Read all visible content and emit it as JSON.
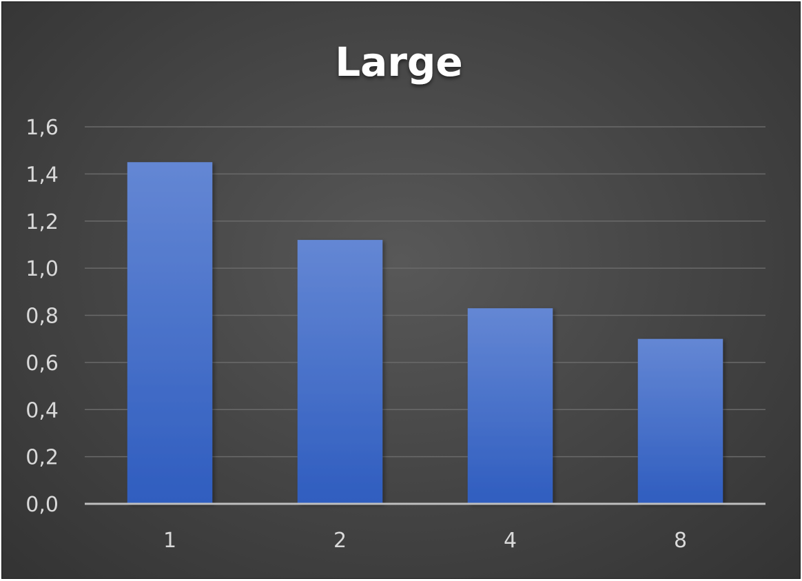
{
  "chart_data": {
    "type": "bar",
    "title": "Large",
    "xlabel": "",
    "ylabel": "",
    "categories": [
      "1",
      "2",
      "4",
      "8"
    ],
    "values": [
      1.45,
      1.12,
      0.83,
      0.7
    ],
    "ylim": [
      0,
      1.6
    ],
    "y_ticks": [
      0,
      0.2,
      0.4,
      0.6,
      0.8,
      1.0,
      1.2,
      1.4,
      1.6
    ],
    "y_tick_labels": [
      "0,0",
      "0,2",
      "0,4",
      "0,6",
      "0,8",
      "1,0",
      "1,2",
      "1,4",
      "1,6"
    ],
    "grid": true,
    "legend": "none",
    "colors": {
      "bar_top": "#6487d4",
      "bar_bottom": "#2f5dbf",
      "gridline": "#6a6a6a",
      "axis": "#bfbfbf",
      "tick_text": "#d9d9d9",
      "title_text": "#ffffff"
    }
  }
}
